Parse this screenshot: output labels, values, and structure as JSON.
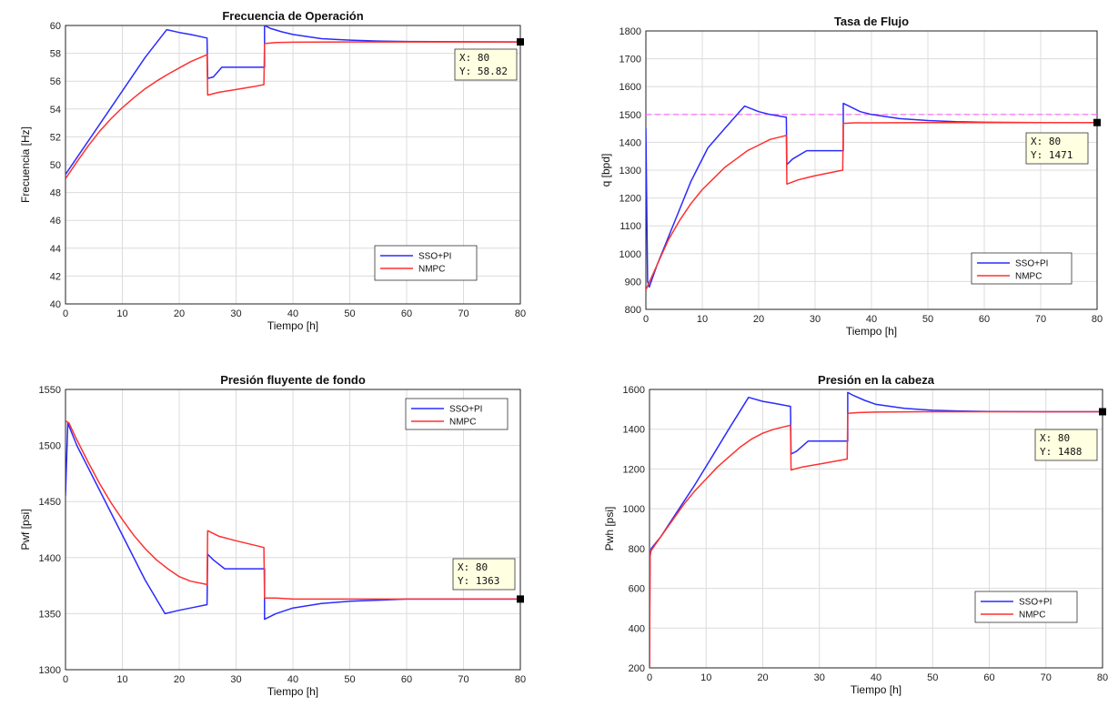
{
  "colors": {
    "series_blue": "#2b2bff",
    "series_red": "#ff3030",
    "reference": "#ff66ff",
    "grid": "#dcdcdc",
    "tooltip_bg": "#ffffe1",
    "marker": "#000000"
  },
  "chart_data": [
    {
      "id": "frecuencia",
      "type": "line",
      "title": "Frecuencia de Operación",
      "xlabel": "Tiempo [h]",
      "ylabel": "Frecuencia [Hz]",
      "xlim": [
        0,
        80
      ],
      "ylim": [
        40,
        60
      ],
      "xticks": [
        0,
        10,
        20,
        30,
        40,
        50,
        60,
        70,
        80
      ],
      "yticks": [
        40,
        42,
        44,
        46,
        48,
        50,
        52,
        54,
        56,
        58,
        60
      ],
      "grid": true,
      "legend_position": "lower-right",
      "series": [
        {
          "name": "SSO+PI",
          "color": "#2b2bff",
          "x": [
            0,
            2,
            5,
            8,
            11,
            14,
            17.8,
            20,
            22,
            24.9,
            25,
            26,
            27.5,
            30,
            35,
            35,
            36,
            38,
            40,
            45,
            50,
            55,
            60,
            70,
            80
          ],
          "y": [
            49.3,
            50.5,
            52.3,
            54.1,
            55.9,
            57.7,
            59.7,
            59.5,
            59.35,
            59.1,
            56.2,
            56.3,
            57.0,
            57.0,
            57.0,
            60.0,
            59.8,
            59.55,
            59.35,
            59.05,
            58.95,
            58.88,
            58.85,
            58.83,
            58.82
          ]
        },
        {
          "name": "NMPC",
          "color": "#ff3030",
          "x": [
            0,
            2,
            4,
            6,
            8,
            10,
            12,
            14,
            16,
            18,
            20,
            22,
            24.9,
            25,
            27,
            30,
            33,
            34.9,
            35,
            37,
            40,
            50,
            60,
            70,
            80
          ],
          "y": [
            49.0,
            50.2,
            51.35,
            52.4,
            53.3,
            54.1,
            54.8,
            55.45,
            56.0,
            56.5,
            56.95,
            57.4,
            57.9,
            55.0,
            55.2,
            55.4,
            55.6,
            55.75,
            58.7,
            58.78,
            58.8,
            58.82,
            58.82,
            58.82,
            58.82
          ]
        }
      ],
      "datatip": {
        "x_text": "X: 80",
        "y_text": "Y: 58.82",
        "x": 80,
        "y": 58.82
      }
    },
    {
      "id": "flujo",
      "type": "line",
      "title": "Tasa de Flujo",
      "xlabel": "Tiempo [h]",
      "ylabel": "q [bpd]",
      "xlim": [
        0,
        80
      ],
      "ylim": [
        800,
        1800
      ],
      "xticks": [
        0,
        10,
        20,
        30,
        40,
        50,
        60,
        70,
        80
      ],
      "yticks": [
        800,
        900,
        1000,
        1100,
        1200,
        1300,
        1400,
        1500,
        1600,
        1700,
        1800
      ],
      "grid": true,
      "legend_position": "lower-right",
      "reference_y": 1500,
      "series": [
        {
          "name": "SSO+PI",
          "color": "#2b2bff",
          "x": [
            0,
            0.3,
            0.6,
            2,
            5,
            8,
            11,
            14,
            17.5,
            20,
            22,
            24.9,
            25,
            26,
            28.5,
            30,
            35,
            35,
            36,
            38,
            40,
            45,
            50,
            55,
            60,
            70,
            80
          ],
          "y": [
            1450,
            900,
            880,
            960,
            1110,
            1260,
            1380,
            1450,
            1530,
            1510,
            1500,
            1490,
            1320,
            1340,
            1370,
            1370,
            1370,
            1540,
            1530,
            1510,
            1500,
            1485,
            1478,
            1474,
            1472,
            1471,
            1471
          ]
        },
        {
          "name": "NMPC",
          "color": "#ff3030",
          "x": [
            0,
            2,
            4,
            6,
            8,
            10,
            12,
            14,
            16,
            18,
            20,
            22,
            24.9,
            25,
            27,
            30,
            34.9,
            35,
            37,
            40,
            50,
            60,
            70,
            80
          ],
          "y": [
            870,
            960,
            1050,
            1120,
            1180,
            1230,
            1270,
            1310,
            1340,
            1370,
            1390,
            1410,
            1425,
            1250,
            1265,
            1280,
            1300,
            1468,
            1470,
            1470,
            1471,
            1471,
            1471,
            1471
          ]
        }
      ],
      "datatip": {
        "x_text": "X: 80",
        "y_text": "Y: 1471",
        "x": 80,
        "y": 1471
      }
    },
    {
      "id": "presion-fondo",
      "type": "line",
      "title": "Presión fluyente de fondo",
      "xlabel": "Tiempo [h]",
      "ylabel": "Pwf [psi]",
      "xlim": [
        0,
        80
      ],
      "ylim": [
        1300,
        1550
      ],
      "xticks": [
        0,
        10,
        20,
        30,
        40,
        50,
        60,
        70,
        80
      ],
      "yticks": [
        1300,
        1350,
        1400,
        1450,
        1500,
        1550
      ],
      "grid": true,
      "legend_position": "upper-right",
      "series": [
        {
          "name": "SSO+PI",
          "color": "#2b2bff",
          "x": [
            0,
            0.4,
            0.8,
            2,
            5,
            8,
            11,
            14,
            17.5,
            20,
            22,
            24.9,
            25,
            26,
            28,
            30,
            35,
            35,
            37,
            40,
            45,
            50,
            55,
            60,
            70,
            80
          ],
          "y": [
            1455,
            1520,
            1515,
            1500,
            1470,
            1440,
            1410,
            1380,
            1350,
            1353,
            1355,
            1358,
            1403,
            1398,
            1390,
            1390,
            1390,
            1345,
            1350,
            1355,
            1359,
            1361,
            1362,
            1363,
            1363,
            1363
          ]
        },
        {
          "name": "NMPC",
          "color": "#ff3030",
          "x": [
            0,
            0.6,
            2,
            4,
            6,
            8,
            10,
            12,
            14,
            16,
            18,
            20,
            22,
            24.9,
            25,
            27,
            30,
            34.9,
            35,
            37,
            40,
            50,
            60,
            70,
            80
          ],
          "y": [
            1522,
            1520,
            1505,
            1485,
            1466,
            1449,
            1434,
            1420,
            1408,
            1398,
            1390,
            1383,
            1379,
            1376,
            1424,
            1419,
            1415,
            1409,
            1364,
            1364,
            1363,
            1363,
            1363,
            1363,
            1363
          ]
        }
      ],
      "datatip": {
        "x_text": "X: 80",
        "y_text": "Y: 1363",
        "x": 80,
        "y": 1363
      }
    },
    {
      "id": "presion-cabeza",
      "type": "line",
      "title": "Presión en la cabeza",
      "xlabel": "Tiempo [h]",
      "ylabel": "Pwh [psi]",
      "xlim": [
        0,
        80
      ],
      "ylim": [
        200,
        1600
      ],
      "xticks": [
        0,
        10,
        20,
        30,
        40,
        50,
        60,
        70,
        80
      ],
      "yticks": [
        200,
        400,
        600,
        800,
        1000,
        1200,
        1400,
        1600
      ],
      "grid": true,
      "legend_position": "lower-right",
      "series": [
        {
          "name": "SSO+PI",
          "color": "#2b2bff",
          "x": [
            0,
            0.1,
            0.3,
            2,
            5,
            8,
            11,
            14,
            17.5,
            20,
            22,
            24.9,
            25,
            26,
            28,
            30,
            35,
            35,
            36,
            38,
            40,
            45,
            50,
            55,
            60,
            70,
            80
          ],
          "y": [
            200,
            760,
            800,
            860,
            990,
            1120,
            1260,
            1400,
            1560,
            1540,
            1530,
            1515,
            1275,
            1290,
            1340,
            1340,
            1340,
            1585,
            1570,
            1545,
            1525,
            1505,
            1495,
            1491,
            1489,
            1488,
            1488
          ]
        },
        {
          "name": "NMPC",
          "color": "#ff3030",
          "x": [
            0,
            0.1,
            0.3,
            2,
            4,
            6,
            8,
            10,
            12,
            14,
            16,
            18,
            20,
            22,
            24.9,
            25,
            27,
            30,
            34.9,
            35,
            37,
            40,
            50,
            60,
            70,
            80
          ],
          "y": [
            200,
            780,
            790,
            860,
            940,
            1020,
            1090,
            1150,
            1210,
            1260,
            1310,
            1350,
            1380,
            1400,
            1420,
            1195,
            1210,
            1225,
            1250,
            1480,
            1484,
            1486,
            1488,
            1488,
            1488,
            1488
          ]
        }
      ],
      "datatip": {
        "x_text": "X: 80",
        "y_text": "Y: 1488",
        "x": 80,
        "y": 1488
      }
    }
  ]
}
